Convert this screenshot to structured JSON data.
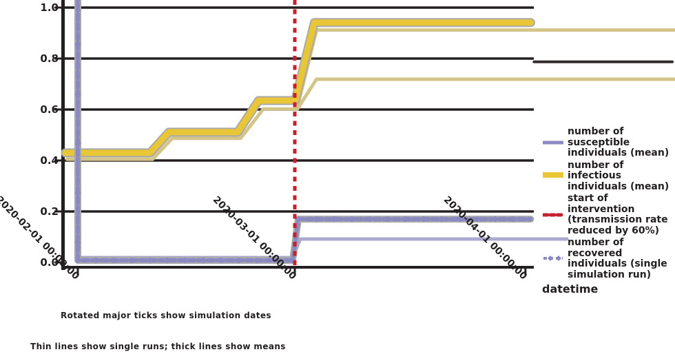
{
  "figure": {
    "background": "#ffffff"
  },
  "colors": {
    "grid": "#231f20",
    "spine": "#231f20",
    "text": "#231f20",
    "yellow": "#e8c636",
    "khaki_muted": "#d3c489",
    "purple": "#8b89c1",
    "purple_muted": "#aba9cf",
    "red": "#c4202e",
    "gray_shadow": "#a9a9a9",
    "dark_run": "#332c2c"
  },
  "chart_data": {
    "type": "line",
    "title": "",
    "xlabel": "datetime",
    "ylabel": "",
    "ylim": [
      0.0,
      1.05
    ],
    "grid": "horizontal",
    "legend_position": "right-outside",
    "y_ticks": [
      {
        "value": 1.0,
        "label": "1.0"
      },
      {
        "value": 0.8,
        "label": "0.8"
      },
      {
        "value": 0.6,
        "label": "0.6"
      },
      {
        "value": 0.4,
        "label": "0.4"
      },
      {
        "value": 0.2,
        "label": "0.2"
      },
      {
        "value": 0.0,
        "label": "0.0"
      }
    ],
    "x_ticks": [
      {
        "t": 0.0,
        "label": "2020-02-01 00:00:00"
      },
      {
        "t": 1.0,
        "label": "2020-03-01 00:00:00"
      },
      {
        "t": 2.063,
        "label": "2020-04-01 00:00:00"
      }
    ],
    "event_line": {
      "t": 1.0,
      "style": "dashed",
      "color_key": "red"
    },
    "series": [
      {
        "name": "susceptible-mean",
        "color_key": "purple",
        "width": 6,
        "dash": "9 5",
        "markers": "diamond",
        "shadow": true,
        "points": [
          [
            0,
            1.05
          ],
          [
            0,
            0.008
          ],
          [
            0.99,
            0.008
          ],
          [
            1.016,
            0.17
          ],
          [
            2.087,
            0.17
          ]
        ]
      },
      {
        "name": "infectious-mean",
        "color_key": "yellow",
        "width": 9,
        "dash": null,
        "markers": null,
        "shadow": true,
        "points": [
          [
            -0.057,
            0.43
          ],
          [
            0.333,
            0.43
          ],
          [
            0.42,
            0.511
          ],
          [
            0.737,
            0.511
          ],
          [
            0.833,
            0.635
          ],
          [
            1.002,
            0.635
          ],
          [
            1.09,
            0.941
          ],
          [
            2.087,
            0.941
          ]
        ]
      },
      {
        "name": "single-run-upper",
        "color_key": "khaki_muted",
        "width": 5,
        "dash": null,
        "markers": null,
        "shadow": false,
        "points": [
          [
            -0.05,
            0.405
          ],
          [
            0.345,
            0.405
          ],
          [
            0.435,
            0.487
          ],
          [
            0.75,
            0.487
          ],
          [
            0.855,
            0.602
          ],
          [
            1.01,
            0.602
          ],
          [
            1.1,
            0.912
          ],
          [
            2.752,
            0.912
          ]
        ]
      },
      {
        "name": "single-run-lower",
        "color_key": "khaki_muted",
        "width": 5,
        "dash": null,
        "markers": null,
        "shadow": false,
        "points": [
          [
            1.012,
            0.602
          ],
          [
            1.1,
            0.719
          ],
          [
            2.752,
            0.719
          ]
        ]
      },
      {
        "name": "recovered-run",
        "color_key": "purple_muted",
        "width": 5,
        "dash": null,
        "markers": null,
        "shadow": false,
        "points": [
          [
            0,
            0.019
          ],
          [
            0.99,
            0.019
          ],
          [
            1.025,
            0.092
          ],
          [
            2.254,
            0.092
          ]
        ]
      },
      {
        "name": "dark-run",
        "color_key": "dark_run",
        "width": 4,
        "dash": null,
        "markers": null,
        "shadow": false,
        "points": [
          [
            2.103,
            0.787
          ],
          [
            2.74,
            0.787
          ]
        ]
      }
    ],
    "legend": {
      "entries": [
        {
          "swatch": "solid-purple",
          "label": "number of susceptible\nindividuals (mean)"
        },
        {
          "swatch": "solid-yellow",
          "label": "number of infectious\nindividuals (mean)"
        },
        {
          "swatch": "dashed-red",
          "label": "start of intervention\n(transmission rate\nreduced by 60%)"
        },
        {
          "swatch": "dashed-purple-markers",
          "label": "number of recovered\nindividuals (single\nsimulation run)"
        }
      ]
    },
    "captions": [
      "Rotated major ticks show simulation dates",
      "Thin lines show single runs; thick lines show means"
    ]
  }
}
